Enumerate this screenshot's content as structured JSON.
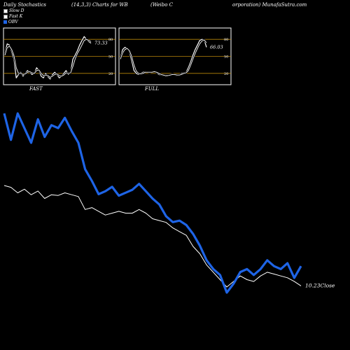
{
  "header": {
    "title": "Daily Stochastics",
    "params": "(14,3,3) Charts for WB",
    "company_part1": "(Weibo  C",
    "company_part2": "orporation) MunafaSutra.com"
  },
  "legend": [
    {
      "label": "Slow  D",
      "color": "#ffffff"
    },
    {
      "label": "Fast K",
      "color": "#ffffff"
    },
    {
      "label": "OBV",
      "color": "#1e64e6"
    }
  ],
  "panels": {
    "fast": {
      "label": "FAST",
      "last_value": "73.33"
    },
    "full": {
      "label": "FULL",
      "last_value": "66.03"
    }
  },
  "price_label": "10.23Close",
  "colors": {
    "obv": "#1e64e6",
    "price": "#ffffff",
    "grid": "#b8860b",
    "panel_border": "#ffffff"
  },
  "chart_data": [
    {
      "type": "line",
      "title": "FAST",
      "y_ticks": [
        20,
        50,
        80
      ],
      "ylim": [
        0,
        100
      ],
      "series": [
        {
          "name": "Fast K",
          "values": [
            55,
            72,
            70,
            58,
            45,
            12,
            18,
            22,
            15,
            20,
            25,
            22,
            18,
            20,
            30,
            25,
            15,
            12,
            20,
            14,
            10,
            18,
            22,
            18,
            12,
            15,
            20,
            25,
            18,
            22,
            45,
            52,
            60,
            70,
            78,
            85,
            80,
            76,
            73.33
          ]
        },
        {
          "name": "Slow  D",
          "values": [
            52,
            65,
            68,
            62,
            52,
            30,
            20,
            20,
            18,
            19,
            22,
            23,
            21,
            20,
            25,
            26,
            20,
            16,
            17,
            16,
            13,
            15,
            18,
            19,
            16,
            15,
            17,
            21,
            20,
            21,
            32,
            45,
            55,
            62,
            70,
            78,
            80,
            78,
            76
          ]
        }
      ]
    },
    {
      "type": "line",
      "title": "FULL",
      "y_ticks": [
        20,
        50,
        80
      ],
      "ylim": [
        0,
        100
      ],
      "series": [
        {
          "name": "Fast K",
          "values": [
            48,
            62,
            66,
            64,
            58,
            42,
            25,
            20,
            18,
            20,
            22,
            23,
            22,
            21,
            23,
            24,
            21,
            18,
            17,
            16,
            15,
            16,
            18,
            19,
            17,
            16,
            17,
            20,
            21,
            22,
            30,
            40,
            52,
            62,
            70,
            78,
            80,
            79,
            66.03
          ]
        },
        {
          "name": "Slow  D",
          "values": [
            45,
            56,
            62,
            64,
            60,
            50,
            35,
            24,
            20,
            19,
            20,
            22,
            22,
            22,
            22,
            23,
            22,
            20,
            18,
            17,
            16,
            16,
            17,
            18,
            18,
            17,
            17,
            18,
            20,
            21,
            25,
            34,
            45,
            55,
            64,
            72,
            77,
            79,
            74
          ]
        }
      ]
    },
    {
      "type": "line",
      "title": "",
      "series": [
        {
          "name": "OBV",
          "values": [
            100,
            82,
            100,
            90,
            80,
            96,
            84,
            92,
            90,
            97,
            88,
            80,
            62,
            54,
            45,
            47,
            50,
            44,
            46,
            48,
            52,
            47,
            42,
            38,
            30,
            26,
            27,
            24,
            18,
            10,
            0,
            -6,
            -10,
            -22,
            -16,
            -8,
            -6,
            -10,
            -6,
            0,
            -4,
            -6,
            -2,
            -12,
            -4
          ]
        },
        {
          "name": "Close",
          "values": [
            12.95,
            12.9,
            12.75,
            12.85,
            12.7,
            12.8,
            12.6,
            12.7,
            12.68,
            12.75,
            12.7,
            12.65,
            12.3,
            12.35,
            12.25,
            12.15,
            12.2,
            12.25,
            12.2,
            12.2,
            12.3,
            12.2,
            12.05,
            12.0,
            11.95,
            11.8,
            11.7,
            11.6,
            11.3,
            11.1,
            10.8,
            10.6,
            10.4,
            10.2,
            10.35,
            10.5,
            10.4,
            10.35,
            10.5,
            10.6,
            10.55,
            10.5,
            10.45,
            10.35,
            10.23
          ]
        }
      ]
    }
  ]
}
